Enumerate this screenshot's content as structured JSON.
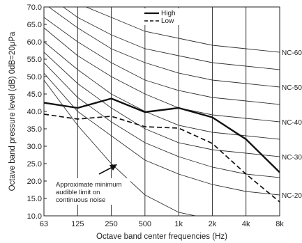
{
  "chart_data": {
    "type": "line",
    "xlabel": "Octave band center frequencies (Hz)",
    "ylabel": "Octave band pressure level (dB) 0dB=20μPa",
    "categories": [
      "63",
      "125",
      "250",
      "500",
      "1k",
      "2k",
      "4k",
      "8k"
    ],
    "y_ticks": [
      "10.0",
      "15.0",
      "20.0",
      "25.0",
      "30.0",
      "35.0",
      "40.0",
      "45.0",
      "50.0",
      "55.0",
      "60.0",
      "65.0",
      "70.0"
    ],
    "ylim": [
      10,
      70
    ],
    "grid": "vertical lines at each octave band",
    "legend_position": "top-right",
    "series": [
      {
        "name": "High",
        "style": "solid",
        "values": [
          42.5,
          41.0,
          43.7,
          39.8,
          41.0,
          38.3,
          32.0,
          22.5
        ]
      },
      {
        "name": "Low",
        "style": "dashed",
        "values": [
          39.2,
          37.8,
          38.6,
          35.6,
          35.2,
          30.8,
          22.0,
          14.0
        ]
      }
    ],
    "nc_curves": [
      {
        "label": "NC-20",
        "values": [
          51,
          40,
          33,
          26,
          22,
          19,
          17,
          16
        ]
      },
      {
        "label": "",
        "values": [
          54,
          44,
          37,
          31,
          27,
          24,
          22,
          21
        ]
      },
      {
        "label": "NC-30",
        "values": [
          57,
          48,
          41,
          35,
          31,
          29,
          28,
          27
        ]
      },
      {
        "label": "",
        "values": [
          60,
          52,
          45,
          40,
          36,
          34,
          33,
          32
        ]
      },
      {
        "label": "NC-40",
        "values": [
          64,
          56,
          50,
          45,
          41,
          39,
          38,
          37
        ]
      },
      {
        "label": "",
        "values": [
          67,
          60,
          54,
          49,
          46,
          44,
          43,
          42
        ]
      },
      {
        "label": "NC-50",
        "values": [
          71,
          64,
          58,
          54,
          51,
          49,
          48,
          47
        ]
      },
      {
        "label": "",
        "values": [
          74,
          67,
          62,
          58,
          56,
          54,
          53,
          52
        ]
      },
      {
        "label": "NC-60",
        "values": [
          77,
          71,
          67,
          63,
          61,
          59,
          58,
          57
        ]
      }
    ],
    "audible_limit": {
      "values": [
        49,
        36,
        25,
        16,
        11,
        9,
        7,
        6
      ]
    },
    "annotation": {
      "lines": [
        "Approximate minimum",
        "audible limit on",
        "continuous noise"
      ],
      "arrow_to": {
        "x": "250",
        "y": 26.5
      }
    }
  }
}
